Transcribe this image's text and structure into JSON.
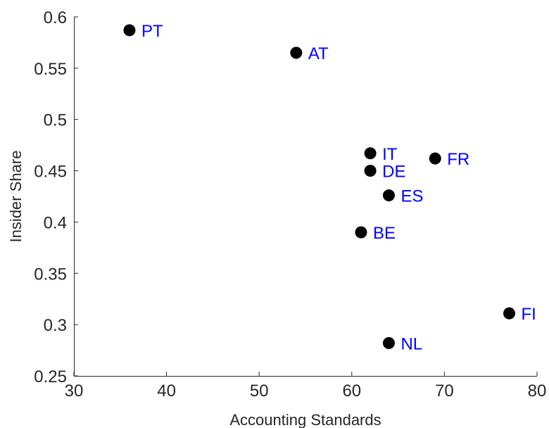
{
  "chart_data": {
    "type": "scatter",
    "xlabel": "Accounting Standards",
    "ylabel": "Insider Share",
    "xlim": [
      30,
      80
    ],
    "ylim": [
      0.25,
      0.6
    ],
    "xticks": [
      "30",
      "40",
      "50",
      "60",
      "70",
      "80"
    ],
    "yticks": [
      "0.25",
      "0.3",
      "0.35",
      "0.4",
      "0.45",
      "0.5",
      "0.55",
      "0.6"
    ],
    "grid": false,
    "marker_color": "#000000",
    "label_color": "#0000ff",
    "points": [
      {
        "label": "PT",
        "x": 36,
        "y": 0.587
      },
      {
        "label": "AT",
        "x": 54,
        "y": 0.565
      },
      {
        "label": "IT",
        "x": 62,
        "y": 0.467
      },
      {
        "label": "DE",
        "x": 62,
        "y": 0.45
      },
      {
        "label": "FR",
        "x": 69,
        "y": 0.462
      },
      {
        "label": "ES",
        "x": 64,
        "y": 0.426
      },
      {
        "label": "BE",
        "x": 61,
        "y": 0.39
      },
      {
        "label": "FI",
        "x": 77,
        "y": 0.311
      },
      {
        "label": "NL",
        "x": 64,
        "y": 0.282
      }
    ]
  }
}
